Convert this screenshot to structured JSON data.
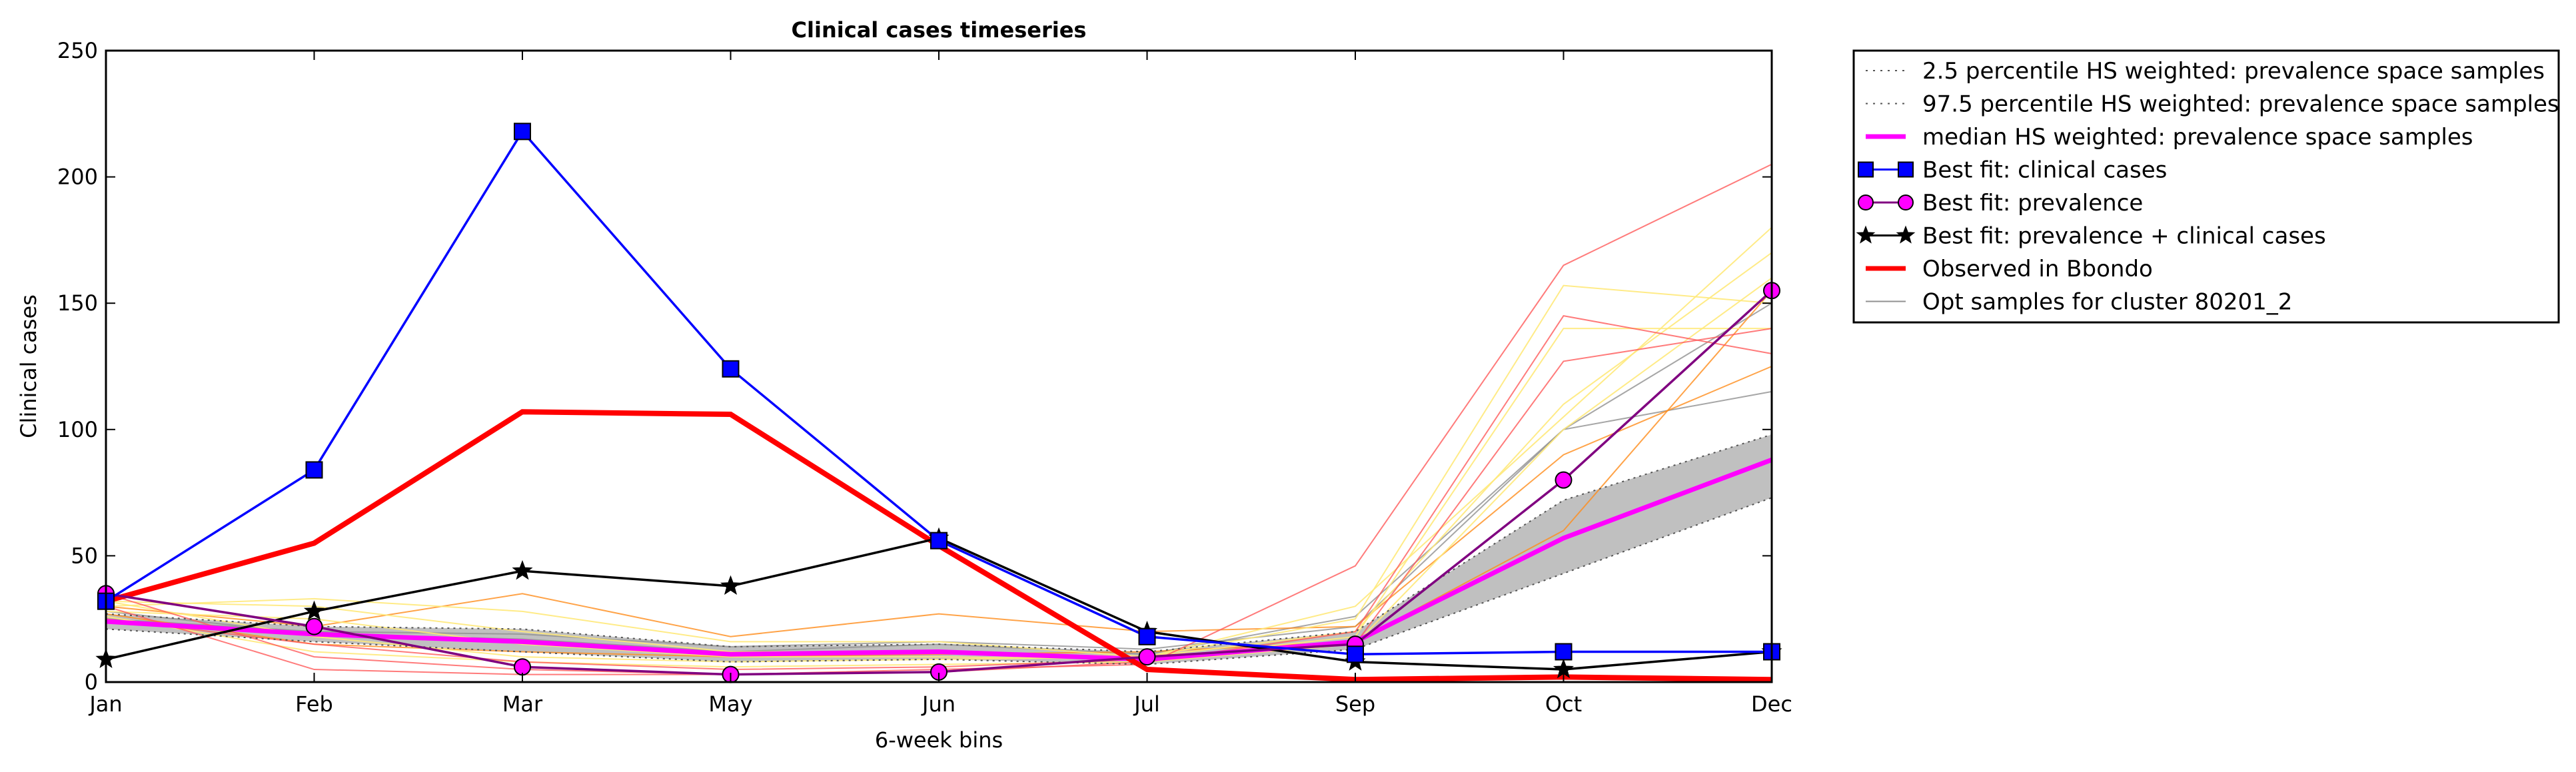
{
  "chart_data": {
    "type": "line",
    "title": "Clinical cases timeseries",
    "xlabel": "6-week bins",
    "ylabel": "Clinical cases",
    "categories": [
      "Jan",
      "Feb",
      "Mar",
      "May",
      "Jun",
      "Jul",
      "Sep",
      "Oct",
      "Dec"
    ],
    "ylim": [
      0,
      250
    ],
    "yticks": [
      "0",
      "50",
      "100",
      "150",
      "200",
      "250"
    ],
    "grid": false,
    "legend_position": "outside-right",
    "band": {
      "lower": [
        21,
        16,
        12,
        8,
        9,
        7,
        13,
        43,
        73
      ],
      "upper": [
        27,
        22,
        21,
        14,
        15,
        12,
        20,
        72,
        98
      ],
      "fill": "#c0c0c0"
    },
    "samples": {
      "gray": [
        [
          25,
          20,
          19,
          14,
          16,
          13,
          22,
          100,
          115
        ],
        [
          28,
          19,
          17,
          12,
          15,
          11,
          26,
          100,
          150
        ]
      ],
      "orange": [
        [
          30,
          22,
          35,
          18,
          27,
          20,
          22,
          90,
          125
        ],
        [
          27,
          15,
          12,
          10,
          11,
          12,
          16,
          60,
          155
        ]
      ],
      "yellow": [
        [
          30,
          33,
          28,
          16,
          16,
          10,
          30,
          105,
          180
        ],
        [
          32,
          30,
          20,
          12,
          12,
          10,
          20,
          110,
          170
        ],
        [
          26,
          12,
          8,
          6,
          7,
          8,
          15,
          100,
          160
        ],
        [
          28,
          25,
          15,
          10,
          10,
          9,
          18,
          140,
          140
        ],
        [
          32,
          18,
          10,
          8,
          9,
          10,
          25,
          157,
          150
        ]
      ],
      "red": [
        [
          35,
          10,
          5,
          3,
          5,
          7,
          46,
          165,
          205
        ],
        [
          30,
          5,
          3,
          3,
          4,
          8,
          20,
          145,
          130
        ],
        [
          25,
          15,
          8,
          5,
          6,
          9,
          15,
          127,
          140
        ]
      ]
    },
    "series": [
      {
        "name": "2.5 percentile HS weighted: prevalence space samples",
        "color": "#555555",
        "style": "dotted",
        "values": [
          21,
          16,
          12,
          8,
          9,
          7,
          13,
          43,
          73
        ]
      },
      {
        "name": "97.5 percentile HS weighted: prevalence space samples",
        "color": "#555555",
        "style": "dotted",
        "values": [
          27,
          22,
          21,
          14,
          15,
          12,
          20,
          72,
          98
        ]
      },
      {
        "name": "median HS weighted: prevalence space samples",
        "color": "#ff00ff",
        "style": "solid",
        "values": [
          24,
          19,
          16,
          11,
          12,
          9,
          16,
          57,
          88
        ]
      },
      {
        "name": "Best fit: clinical cases",
        "color": "#0000ff",
        "style": "solid",
        "marker": "square",
        "values": [
          32,
          84,
          218,
          124,
          56,
          18,
          11,
          12,
          12
        ]
      },
      {
        "name": "Best fit: prevalence",
        "color": "#800080",
        "style": "solid",
        "marker": "circle",
        "values": [
          35,
          22,
          6,
          3,
          4,
          10,
          15,
          80,
          155
        ]
      },
      {
        "name": "Best fit: prevalence + clinical cases",
        "color": "#000000",
        "style": "solid",
        "marker": "star",
        "values": [
          9,
          28,
          44,
          38,
          57,
          20,
          8,
          5,
          12
        ]
      },
      {
        "name": "Observed in Bbondo",
        "color": "#ff0000",
        "style": "thick",
        "values": [
          32,
          55,
          107,
          106,
          54,
          5,
          1,
          2,
          1
        ]
      },
      {
        "name": "Opt samples for cluster 80201_2",
        "color": "#909090",
        "style": "thin",
        "values": null
      }
    ]
  }
}
